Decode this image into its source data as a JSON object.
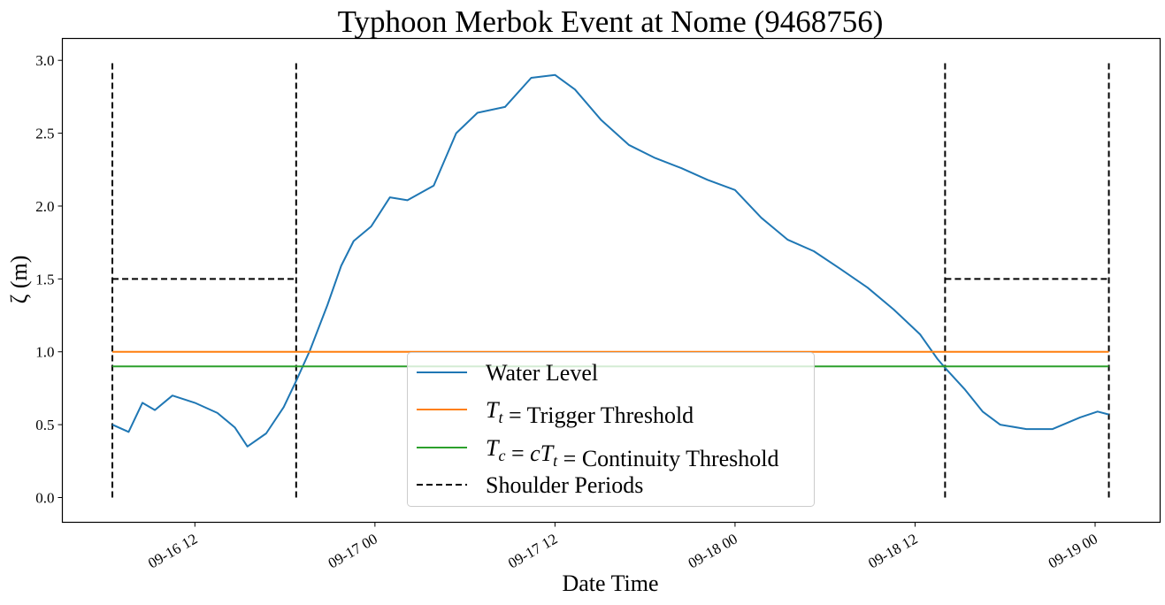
{
  "chart_data": {
    "type": "line",
    "title": "Typhoon Merbok Event at Nome (9468756)",
    "xlabel": "Date Time",
    "ylabel": "ζ (m)",
    "xlim": [
      "09-16 03:10",
      "09-19 04:20"
    ],
    "ylim": [
      -0.17,
      3.15
    ],
    "x_ticks": [
      "09-16 12",
      "09-17 00",
      "09-17 12",
      "09-18 00",
      "09-18 12",
      "09-19 00"
    ],
    "y_ticks": [
      "0.0",
      "0.5",
      "1.0",
      "1.5",
      "2.0",
      "2.5",
      "3.0"
    ],
    "grid": false,
    "legend_position": "bottom-center",
    "series": [
      {
        "name": "Water Level",
        "color": "#1f77b4",
        "x": [
          "09-16 06:30",
          "09-16 07:35",
          "09-16 08:30",
          "09-16 09:20",
          "09-16 10:30",
          "09-16 12:00",
          "09-16 13:30",
          "09-16 14:40",
          "09-16 15:30",
          "09-16 16:45",
          "09-16 17:55",
          "09-16 18:45",
          "09-16 19:40",
          "09-16 20:50",
          "09-16 21:45",
          "09-16 22:35",
          "09-16 23:45",
          "09-17 01:00",
          "09-17 02:10",
          "09-17 03:55",
          "09-17 05:25",
          "09-17 06:50",
          "09-17 08:40",
          "09-17 10:25",
          "09-17 12:00",
          "09-17 13:20",
          "09-17 15:05",
          "09-17 16:55",
          "09-17 18:40",
          "09-17 20:25",
          "09-17 22:10",
          "09-18 00:00",
          "09-18 01:45",
          "09-18 03:30",
          "09-18 05:15",
          "09-18 07:00",
          "09-18 08:50",
          "09-18 10:35",
          "09-18 12:20",
          "09-18 13:30",
          "09-18 14:00",
          "09-18 15:20",
          "09-18 16:30",
          "09-18 17:40",
          "09-18 19:25",
          "09-18 21:10",
          "09-18 23:00",
          "09-19 00:10",
          "09-19 00:55"
        ],
        "y": [
          0.5,
          0.45,
          0.65,
          0.6,
          0.7,
          0.65,
          0.58,
          0.48,
          0.35,
          0.44,
          0.62,
          0.8,
          1.01,
          1.32,
          1.59,
          1.76,
          1.86,
          2.06,
          2.04,
          2.14,
          2.5,
          2.64,
          2.68,
          2.88,
          2.9,
          2.8,
          2.59,
          2.42,
          2.33,
          2.26,
          2.18,
          2.11,
          1.92,
          1.77,
          1.69,
          1.57,
          1.44,
          1.29,
          1.12,
          0.95,
          0.89,
          0.74,
          0.59,
          0.5,
          0.47,
          0.47,
          0.55,
          0.59,
          0.57
        ]
      },
      {
        "name": "T_t = Trigger Threshold",
        "color": "#ff7f0e",
        "x": [
          "09-16 06:30",
          "09-19 00:55"
        ],
        "y": [
          1.0,
          1.0
        ]
      },
      {
        "name": "T_c = cT_t = Continuity Threshold",
        "color": "#2ca02c",
        "x": [
          "09-16 06:30",
          "09-19 00:55"
        ],
        "y": [
          0.9,
          0.9
        ]
      },
      {
        "name": "Shoulder Periods",
        "color": "#000000",
        "dashed": true,
        "periods": [
          {
            "start": "09-16 06:30",
            "end": "09-16 18:45",
            "height": 1.5,
            "vline_top": 3.0,
            "vline_bottom": 0.0
          },
          {
            "start": "09-18 14:00",
            "end": "09-19 00:55",
            "height": 1.5,
            "vline_top": 3.0,
            "vline_bottom": 0.0
          }
        ]
      }
    ]
  }
}
